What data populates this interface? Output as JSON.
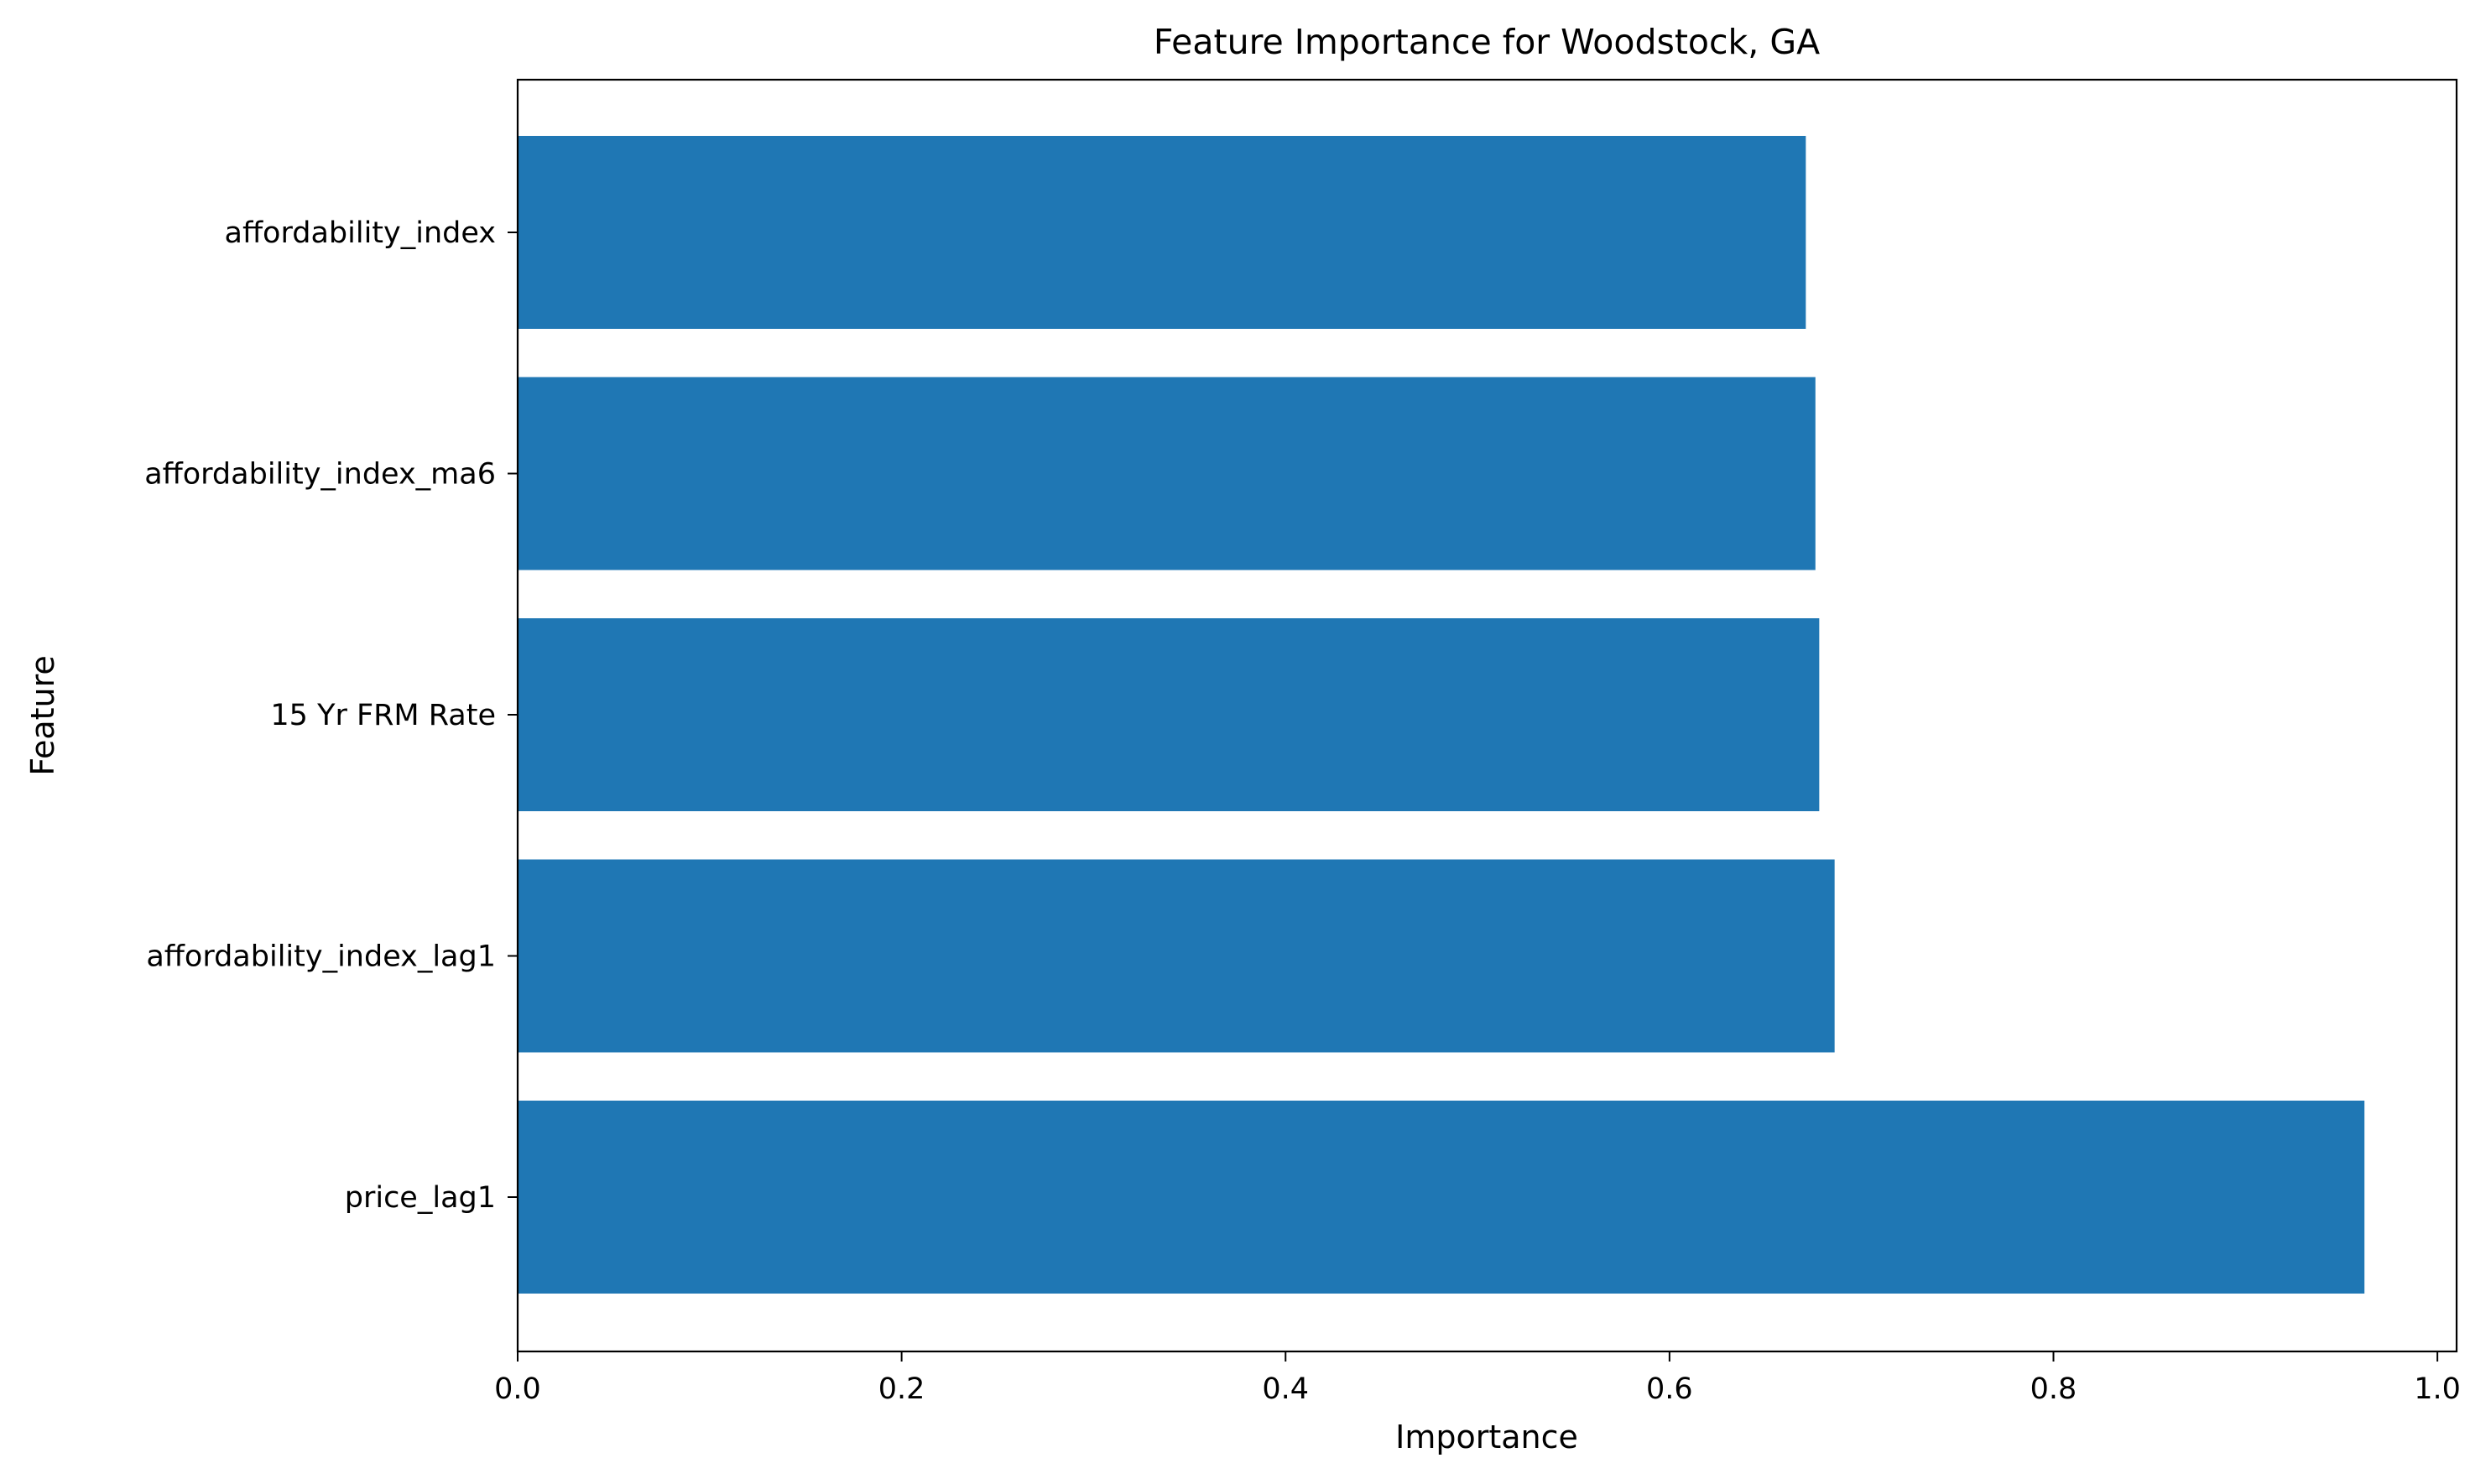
{
  "chart_data": {
    "type": "bar",
    "orientation": "horizontal",
    "title": "Feature Importance for Woodstock, GA",
    "xlabel": "Importance",
    "ylabel": "Feature",
    "categories": [
      "affordability_index",
      "affordability_index_ma6",
      "15 Yr FRM Rate",
      "affordability_index_lag1",
      "price_lag1"
    ],
    "values": [
      0.671,
      0.676,
      0.678,
      0.686,
      0.962
    ],
    "xlim": [
      0,
      1.01
    ],
    "xticks": [
      "0.0",
      "0.2",
      "0.4",
      "0.6",
      "0.8",
      "1.0"
    ],
    "xtick_values": [
      0,
      0.2,
      0.4,
      0.6,
      0.8,
      1.0
    ],
    "grid": false,
    "legend": "none",
    "bar_color": "#1f77b4"
  }
}
